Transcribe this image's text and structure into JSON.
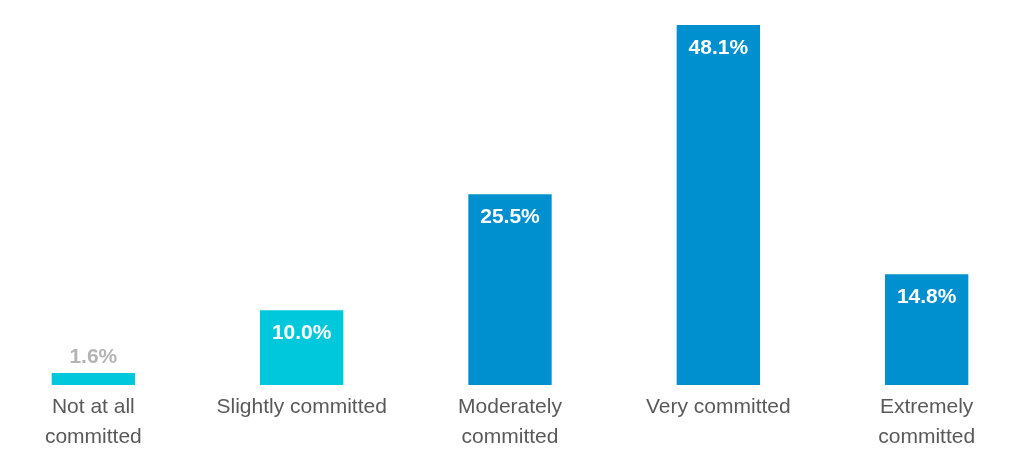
{
  "chart_data": {
    "type": "bar",
    "categories": [
      "Not at all committed",
      "Slightly committed",
      "Moderately committed",
      "Very committed",
      "Extremely committed"
    ],
    "values": [
      1.6,
      10.0,
      25.5,
      48.1,
      14.8
    ],
    "value_labels": [
      "1.6%",
      "10.0%",
      "25.5%",
      "48.1%",
      "14.8%"
    ],
    "colors": [
      "#00c8dc",
      "#00c8dc",
      "#0090d0",
      "#0090d0",
      "#0090d0"
    ]
  }
}
